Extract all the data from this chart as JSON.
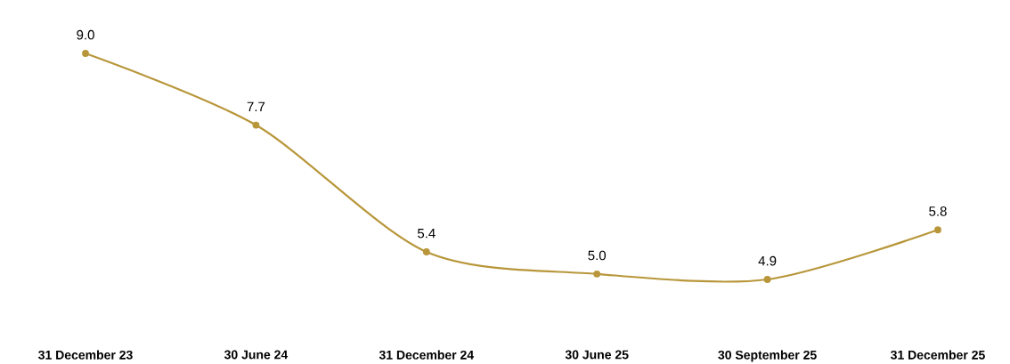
{
  "chart_data": {
    "type": "line",
    "categories": [
      "31 December 23",
      "30 June 24",
      "31 December 24",
      "30 June 25",
      "30 September 25",
      "31 December 25"
    ],
    "values": [
      9.0,
      7.7,
      5.4,
      5.0,
      4.9,
      5.8
    ],
    "value_labels": [
      "9.0",
      "7.7",
      "5.4",
      "5.0",
      "4.9",
      "5.8"
    ],
    "color": "#b8963a",
    "marker": "circle",
    "line_style": "solid"
  }
}
